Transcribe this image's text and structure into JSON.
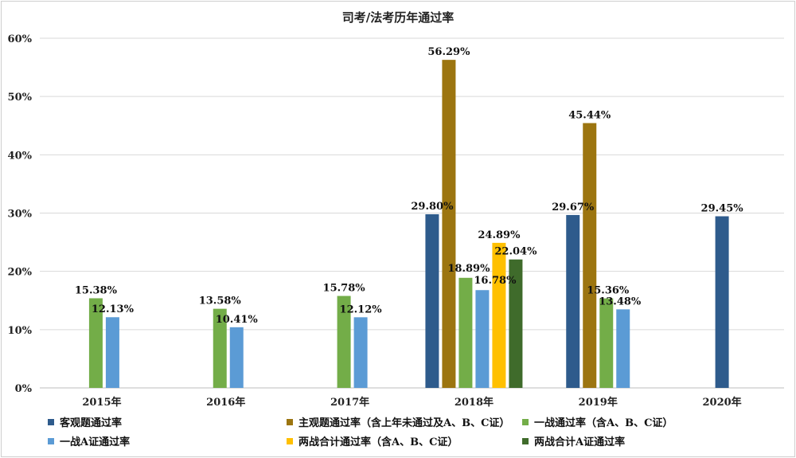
{
  "chart_data": {
    "type": "bar",
    "title": "司考/法考历年通过率",
    "categories": [
      "2015年",
      "2016年",
      "2017年",
      "2018年",
      "2019年",
      "2020年"
    ],
    "ylim": [
      0,
      60
    ],
    "yticks": [
      0,
      10,
      20,
      30,
      40,
      50,
      60
    ],
    "ytick_labels": [
      "0%",
      "10%",
      "20%",
      "30%",
      "40%",
      "50%",
      "60%"
    ],
    "grid": true,
    "legend_position": "bottom",
    "series": [
      {
        "name": "客观题通过率",
        "color": "#2e5b8c",
        "values": [
          null,
          null,
          null,
          29.8,
          29.67,
          29.45
        ],
        "labels": [
          "",
          "",
          "",
          "29.80%",
          "29.67%",
          "29.45%"
        ]
      },
      {
        "name": "主观题通过率（含上年未通过及A、B、C证）",
        "color": "#9c7510",
        "values": [
          null,
          null,
          null,
          56.29,
          45.44,
          null
        ],
        "labels": [
          "",
          "",
          "",
          "56.29%",
          "45.44%",
          ""
        ]
      },
      {
        "name": "一战通过率（含A、B、C证）",
        "color": "#73ad48",
        "values": [
          15.38,
          13.58,
          15.78,
          18.89,
          15.36,
          null
        ],
        "labels": [
          "15.38%",
          "13.58%",
          "15.78%",
          "18.89%",
          "15.36%",
          ""
        ]
      },
      {
        "name": "一战A证通过率",
        "color": "#5b9bd5",
        "values": [
          12.13,
          10.41,
          12.12,
          16.78,
          13.48,
          null
        ],
        "labels": [
          "12.13%",
          "10.41%",
          "12.12%",
          "16.78%",
          "13.48%",
          ""
        ]
      },
      {
        "name": "两战合计通过率（含A、B、C证）",
        "color": "#ffc000",
        "values": [
          null,
          null,
          null,
          24.89,
          null,
          null
        ],
        "labels": [
          "",
          "",
          "",
          "24.89%",
          "",
          ""
        ]
      },
      {
        "name": "两战合计A证通过率",
        "color": "#3f6b2b",
        "values": [
          null,
          null,
          null,
          22.04,
          null,
          null
        ],
        "labels": [
          "",
          "",
          "",
          "22.04%",
          "",
          ""
        ]
      }
    ]
  }
}
